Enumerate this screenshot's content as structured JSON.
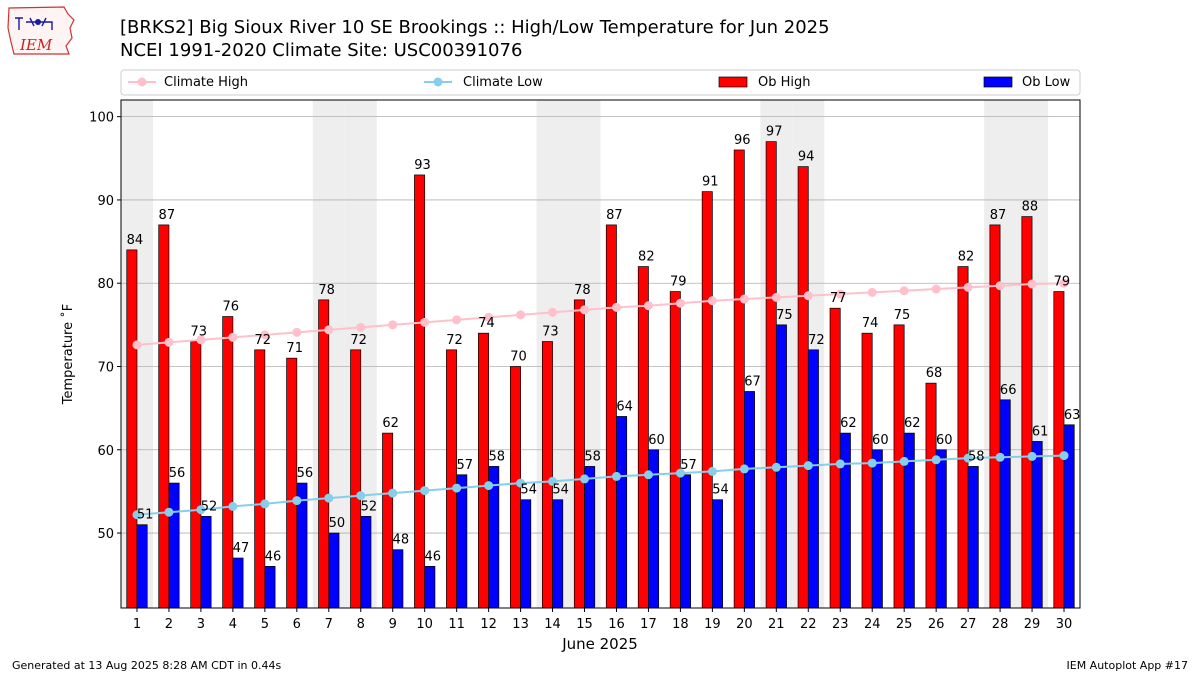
{
  "header": {
    "title_line1": "[BRKS2] Big Sioux River 10 SE Brookings :: High/Low Temperature for Jun 2025",
    "title_line2": "NCEI 1991-2020 Climate Site: USC00391076",
    "logo_text": "IEM"
  },
  "footer": {
    "generated": "Generated at 13 Aug 2025 8:28 AM CDT in 0.44s",
    "app": "IEM Autoplot App #17"
  },
  "colors": {
    "ob_high": "#ff0000",
    "ob_low": "#0000ff",
    "climate_high": "#ffc0cb",
    "climate_low": "#87ceeb",
    "weekend_shade": "#eeeeee",
    "grid": "#b0b0b0"
  },
  "chart_data": {
    "type": "bar",
    "xlabel": "June 2025",
    "ylabel": "Temperature ˚F",
    "ylim": [
      41,
      102
    ],
    "yticks": [
      50,
      60,
      70,
      80,
      90,
      100
    ],
    "grid": "horizontal",
    "legend_placement": "top, above plot",
    "categories": [
      "1",
      "2",
      "3",
      "4",
      "5",
      "6",
      "7",
      "8",
      "9",
      "10",
      "11",
      "12",
      "13",
      "14",
      "15",
      "16",
      "17",
      "18",
      "19",
      "20",
      "21",
      "22",
      "23",
      "24",
      "25",
      "26",
      "27",
      "28",
      "29",
      "30"
    ],
    "shaded_days": [
      1,
      7,
      8,
      14,
      15,
      21,
      22,
      28,
      29
    ],
    "series": [
      {
        "name": "Ob High",
        "kind": "bar",
        "color": "#ff0000",
        "values": [
          84,
          87,
          73,
          76,
          72,
          71,
          78,
          72,
          62,
          93,
          72,
          74,
          70,
          73,
          78,
          87,
          82,
          79,
          91,
          96,
          97,
          94,
          77,
          74,
          75,
          68,
          82,
          87,
          88,
          79
        ]
      },
      {
        "name": "Ob Low",
        "kind": "bar",
        "color": "#0000ff",
        "values": [
          51,
          56,
          52,
          47,
          46,
          56,
          50,
          52,
          48,
          46,
          57,
          58,
          54,
          54,
          58,
          64,
          60,
          57,
          54,
          67,
          75,
          72,
          62,
          60,
          62,
          60,
          58,
          66,
          61,
          63
        ]
      },
      {
        "name": "Climate High",
        "kind": "line",
        "color": "#ffc0cb",
        "values": [
          72.6,
          72.9,
          73.2,
          73.5,
          73.8,
          74.1,
          74.4,
          74.7,
          75.0,
          75.3,
          75.6,
          75.9,
          76.2,
          76.5,
          76.8,
          77.1,
          77.3,
          77.6,
          77.9,
          78.1,
          78.3,
          78.5,
          78.7,
          78.9,
          79.1,
          79.3,
          79.5,
          79.7,
          79.9,
          80.0
        ]
      },
      {
        "name": "Climate Low",
        "kind": "line",
        "color": "#87ceeb",
        "values": [
          52.2,
          52.5,
          52.8,
          53.2,
          53.5,
          53.9,
          54.2,
          54.5,
          54.8,
          55.1,
          55.4,
          55.7,
          56.0,
          56.2,
          56.5,
          56.8,
          57.0,
          57.2,
          57.4,
          57.7,
          57.9,
          58.1,
          58.3,
          58.4,
          58.6,
          58.8,
          59.0,
          59.1,
          59.2,
          59.3
        ]
      }
    ]
  }
}
